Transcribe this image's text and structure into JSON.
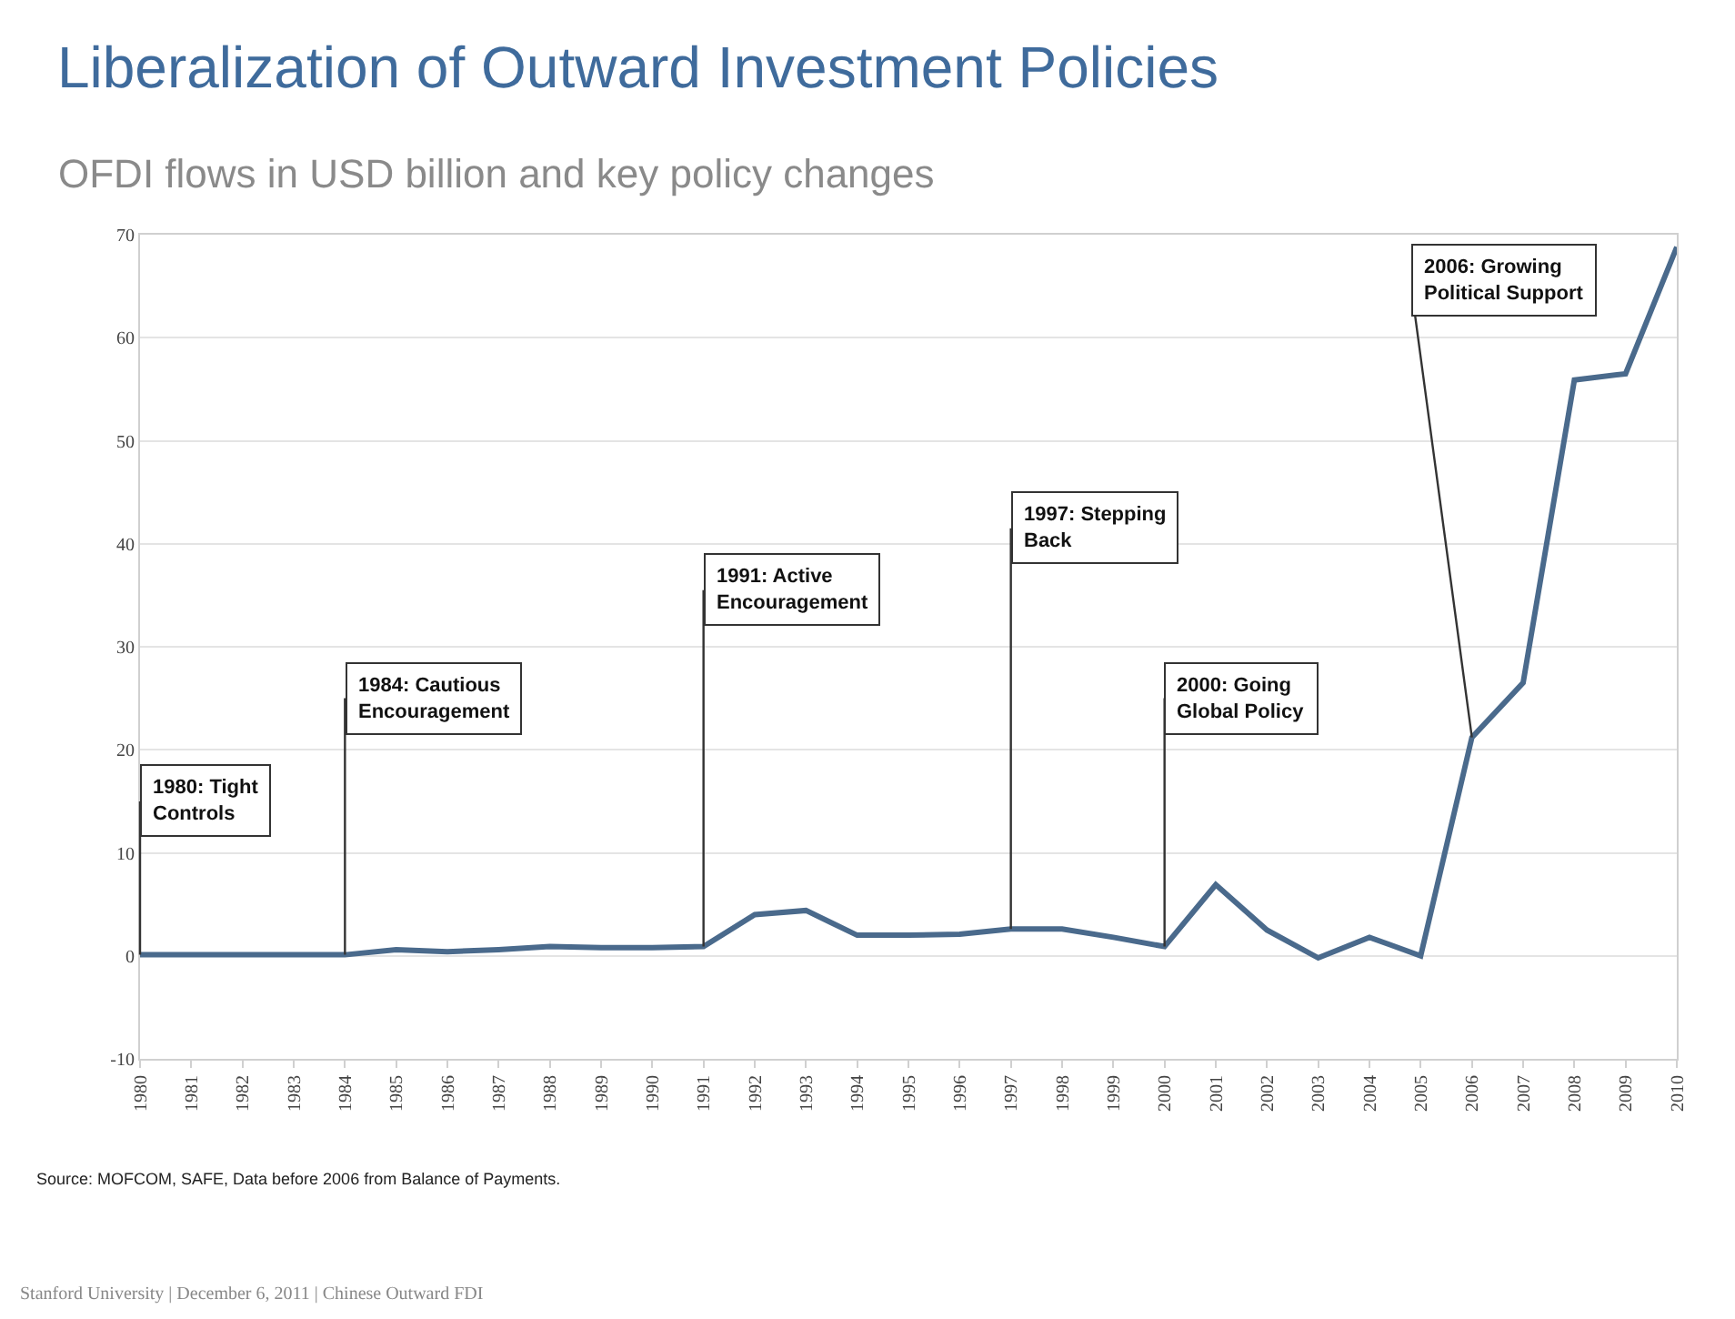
{
  "chart_data": {
    "type": "line",
    "title": "Liberalization of Outward Investment Policies",
    "subtitle": "OFDI flows in USD billion and key policy changes",
    "x": [
      1980,
      1981,
      1982,
      1983,
      1984,
      1985,
      1986,
      1987,
      1988,
      1989,
      1990,
      1991,
      1992,
      1993,
      1994,
      1995,
      1996,
      1997,
      1998,
      1999,
      2000,
      2001,
      2002,
      2003,
      2004,
      2005,
      2006,
      2007,
      2008,
      2009,
      2010
    ],
    "series": [
      {
        "color": "#4a6a8c",
        "values": [
          0.1,
          0.1,
          0.1,
          0.1,
          0.1,
          0.6,
          0.4,
          0.6,
          0.9,
          0.8,
          0.8,
          0.9,
          4.0,
          4.4,
          2.0,
          2.0,
          2.1,
          2.6,
          2.6,
          1.8,
          0.9,
          6.9,
          2.5,
          -0.2,
          1.8,
          0.0,
          21.2,
          26.5,
          55.9,
          56.5,
          68.8
        ]
      }
    ],
    "xlim": [
      1980,
      2010
    ],
    "xticks": [
      1980,
      1981,
      1982,
      1983,
      1984,
      1985,
      1986,
      1987,
      1988,
      1989,
      1990,
      1991,
      1992,
      1993,
      1994,
      1995,
      1996,
      1997,
      1998,
      1999,
      2000,
      2001,
      2002,
      2003,
      2004,
      2005,
      2006,
      2007,
      2008,
      2009,
      2010
    ],
    "ylim": [
      -10,
      70
    ],
    "yticks": [
      -10,
      0,
      10,
      20,
      30,
      40,
      50,
      60,
      70
    ],
    "grid": "y",
    "marker": "none",
    "line_style": "solid",
    "annotations": [
      {
        "text": "1980: Tight\nControls",
        "x": 1980,
        "y": 0.1
      },
      {
        "text": "1984: Cautious\nEncouragement",
        "x": 1984,
        "y": 0.1
      },
      {
        "text": "1991: Active\nEncouragement",
        "x": 1991,
        "y": 0.9
      },
      {
        "text": "1997: Stepping\nBack",
        "x": 1997,
        "y": 2.6
      },
      {
        "text": "2000: Going\nGlobal Policy",
        "x": 2000,
        "y": 0.9
      },
      {
        "text": "2006: Growing\nPolitical Support",
        "x": 2006,
        "y": 21.2
      },
      "Source: MOFCOM, SAFE, Data before 2006 from Balance of Payments.",
      "Stanford University | December 6, 2011 | Chinese Outward FDI"
    ]
  }
}
